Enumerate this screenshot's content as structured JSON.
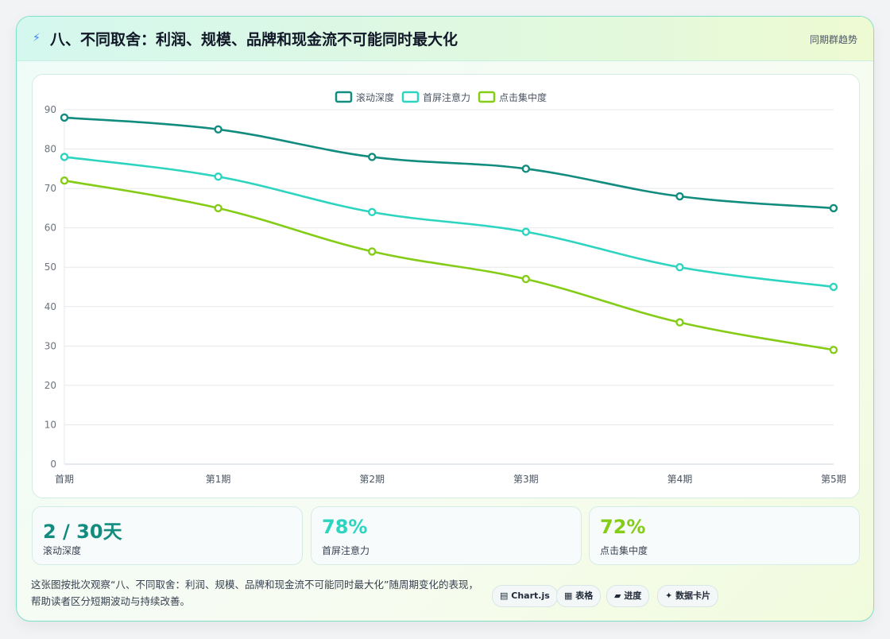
{
  "header": {
    "icon": "lightning-icon",
    "title": "八、不同取舍：利润、规模、品牌和现金流不可能同时最大化",
    "tag": "同期群趋势"
  },
  "chart_data": {
    "type": "line",
    "categories": [
      "首期",
      "第1期",
      "第2期",
      "第3期",
      "第4期",
      "第5期"
    ],
    "series": [
      {
        "name": "滚动深度",
        "color": "#128c7e",
        "values": [
          88,
          85,
          78,
          75,
          68,
          65
        ]
      },
      {
        "name": "首屏注意力",
        "color": "#2dd4bf",
        "values": [
          78,
          73,
          64,
          59,
          50,
          45
        ]
      },
      {
        "name": "点击集中度",
        "color": "#84cc16",
        "values": [
          72,
          65,
          54,
          47,
          36,
          29
        ]
      }
    ],
    "ylim": [
      0,
      90
    ],
    "yticks": [
      0,
      10,
      20,
      30,
      40,
      50,
      60,
      70,
      80,
      90
    ],
    "grid": true,
    "legend": "top-center",
    "title": "",
    "xlabel": "",
    "ylabel": ""
  },
  "stats": [
    {
      "value": "2 / 30天",
      "label": "滚动深度",
      "color": "#128c7e"
    },
    {
      "value": "78%",
      "label": "首屏注意力",
      "color": "#2dd4bf"
    },
    {
      "value": "72%",
      "label": "点击集中度",
      "color": "#84cc16"
    }
  ],
  "footnote": "这张图按批次观察“八、不同取舍：利润、规模、品牌和现金流不可能同时最大化”随周期变化的表现，帮助读者区分短期波动与持续改善。",
  "chips": [
    {
      "icon": "chart-icon",
      "glyph": "▤",
      "label": "Chart.js"
    },
    {
      "icon": "table-icon",
      "glyph": "▦",
      "label": "表格"
    },
    {
      "icon": "progress-icon",
      "glyph": "▰",
      "label": "进度"
    },
    {
      "icon": "sparkle-icon",
      "glyph": "✦",
      "label": "数据卡片"
    }
  ]
}
